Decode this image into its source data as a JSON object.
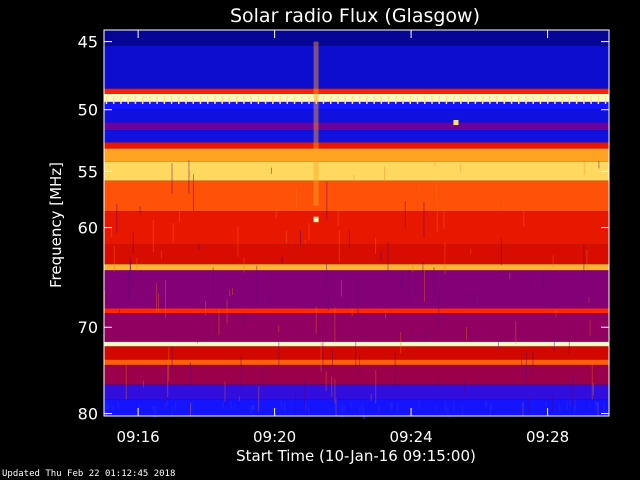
{
  "chart_data": {
    "type": "heatmap",
    "title": "Solar radio Flux (Glasgow)",
    "xlabel": "Start Time (10-Jan-16 09:15:00)",
    "ylabel": "Frequency [MHz]",
    "x_start_min": 0,
    "x_end_min": 14.8,
    "xticks": [
      {
        "label": "09:16",
        "min": 1
      },
      {
        "label": "09:20",
        "min": 5
      },
      {
        "label": "09:24",
        "min": 9
      },
      {
        "label": "09:28",
        "min": 13
      }
    ],
    "y_scale": "log",
    "ylim": [
      45,
      80
    ],
    "yticks": [
      45,
      50,
      55,
      60,
      70,
      80
    ],
    "y_direction": "increasing-downward",
    "colormap": "blue-red-yellow-white",
    "bands": [
      {
        "f0": 44.2,
        "f1": 45.3,
        "level": 0.05
      },
      {
        "f0": 45.3,
        "f1": 48.4,
        "level": 0.12
      },
      {
        "f0": 48.4,
        "f1": 48.8,
        "level": 0.6
      },
      {
        "f0": 48.8,
        "f1": 49.4,
        "level": 0.97
      },
      {
        "f0": 49.4,
        "f1": 50.0,
        "level": 0.18
      },
      {
        "f0": 50.0,
        "f1": 51.0,
        "level": 0.14
      },
      {
        "f0": 51.0,
        "f1": 51.6,
        "level": 0.3
      },
      {
        "f0": 51.6,
        "f1": 52.6,
        "level": 0.14
      },
      {
        "f0": 52.6,
        "f1": 53.1,
        "level": 0.55
      },
      {
        "f0": 53.1,
        "f1": 54.2,
        "level": 0.8
      },
      {
        "f0": 54.2,
        "f1": 55.8,
        "level": 0.88
      },
      {
        "f0": 55.8,
        "f1": 58.5,
        "level": 0.68
      },
      {
        "f0": 58.5,
        "f1": 61.6,
        "level": 0.55
      },
      {
        "f0": 61.6,
        "f1": 63.5,
        "level": 0.5
      },
      {
        "f0": 63.5,
        "f1": 64.1,
        "level": 0.82
      },
      {
        "f0": 64.1,
        "f1": 68.0,
        "level": 0.34
      },
      {
        "f0": 68.0,
        "f1": 68.5,
        "level": 0.62
      },
      {
        "f0": 68.5,
        "f1": 71.6,
        "level": 0.36
      },
      {
        "f0": 71.6,
        "f1": 72.1,
        "level": 0.97
      },
      {
        "f0": 72.1,
        "f1": 73.6,
        "level": 0.48
      },
      {
        "f0": 73.6,
        "f1": 74.2,
        "level": 0.7
      },
      {
        "f0": 74.2,
        "f1": 76.5,
        "level": 0.38
      },
      {
        "f0": 76.5,
        "f1": 78.3,
        "level": 0.22
      },
      {
        "f0": 78.3,
        "f1": 80.3,
        "level": 0.18
      }
    ],
    "features": [
      {
        "min": 6.2,
        "f0": 45.0,
        "f1": 58.0,
        "level": 0.8
      },
      {
        "min": 6.2,
        "f0": 59.0,
        "f1": 59.5,
        "level": 0.95
      },
      {
        "min": 10.3,
        "f0": 50.8,
        "f1": 51.2,
        "level": 0.9
      }
    ]
  },
  "footer": {
    "updated": "Updated Thu Feb 22 01:12:45 2018"
  }
}
